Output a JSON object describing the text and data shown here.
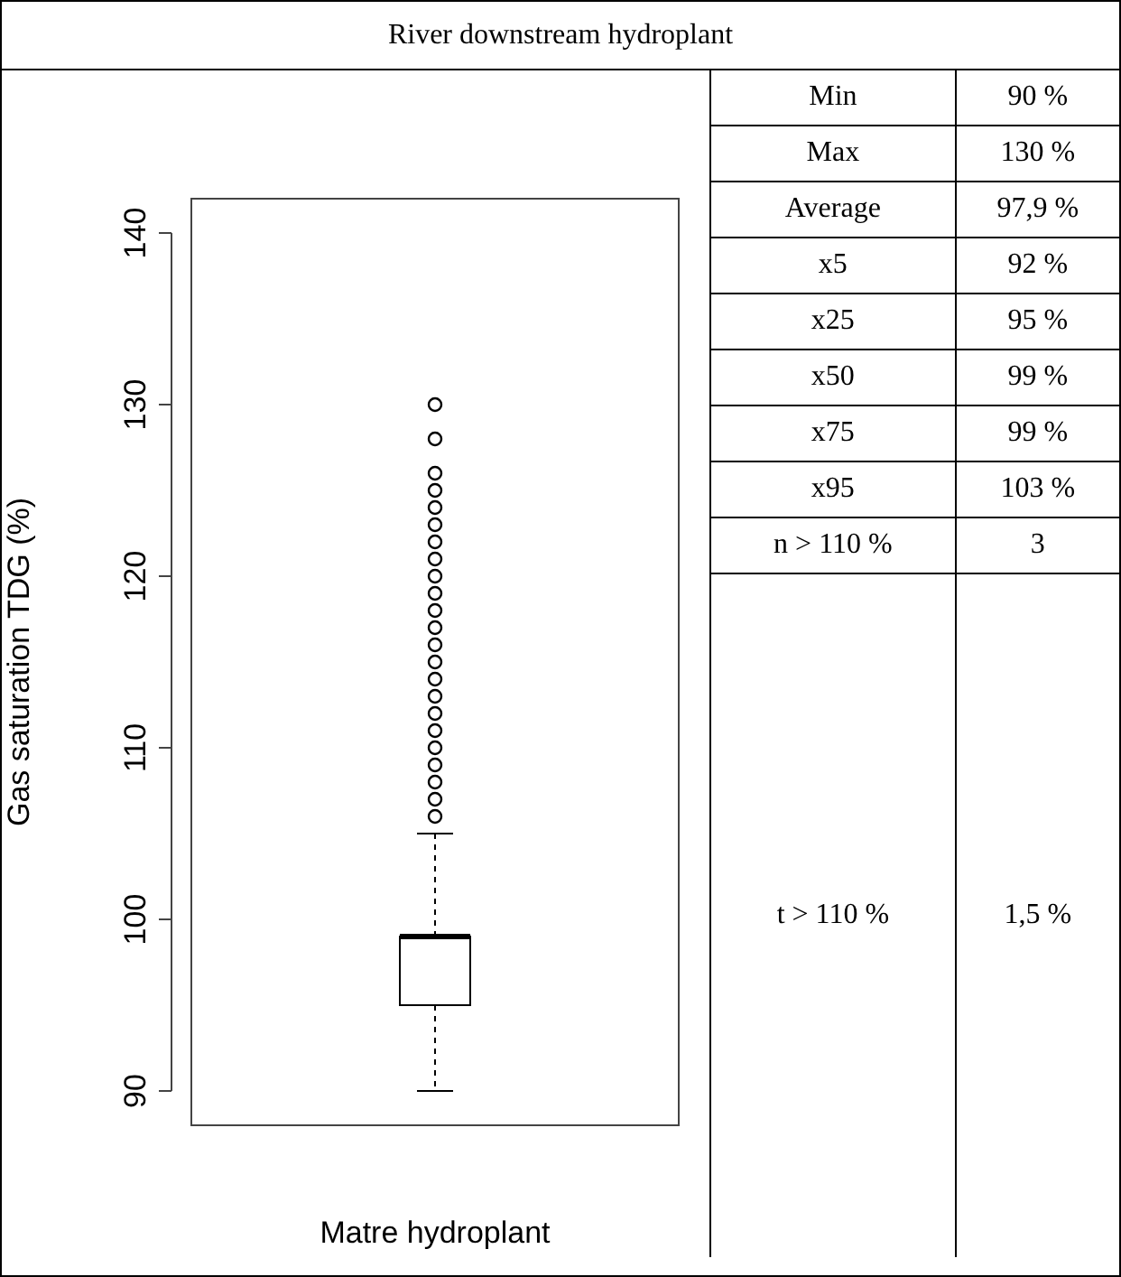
{
  "chart_data": {
    "type": "box",
    "title": "River downstream hydroplant",
    "ylabel": "Gas saturation TDG (%)",
    "categories": [
      "Matre hydroplant"
    ],
    "boxes": [
      {
        "low": 90,
        "q1": 95,
        "median": 99,
        "q3": 99,
        "high": 105,
        "outliers": [
          106,
          107,
          108,
          109,
          110,
          111,
          112,
          113,
          114,
          115,
          116,
          117,
          118,
          119,
          120,
          121,
          122,
          123,
          124,
          125,
          126,
          128,
          130
        ]
      }
    ],
    "ylim": [
      88,
      142
    ],
    "yticks": [
      90,
      100,
      110,
      120,
      130,
      140
    ],
    "grid": false,
    "legend": false,
    "annotations": [
      "Min",
      "90 %",
      "Max",
      "130 %",
      "Average",
      "97,9 %",
      "x5",
      "92 %",
      "x25",
      "95 %",
      "x50",
      "99 %",
      "x75",
      "99 %",
      "x95",
      "103 %",
      "n > 110 %",
      "3",
      "t > 110 %",
      "1,5 %"
    ]
  }
}
